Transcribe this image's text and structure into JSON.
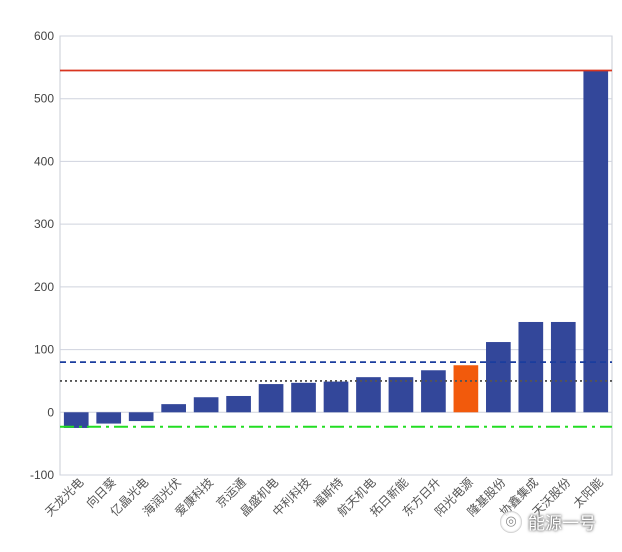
{
  "chart_data": {
    "type": "bar",
    "categories": [
      "天龙光电",
      "向日葵",
      "亿晶光电",
      "海润光伏",
      "爱康科技",
      "京运通",
      "晶盛机电",
      "中利科技",
      "福斯特",
      "航天机电",
      "拓日新能",
      "东方日升",
      "阳光电源",
      "隆基股份",
      "协鑫集成",
      "天沃股份",
      "太阳能"
    ],
    "values": [
      -25,
      -18,
      -14,
      13,
      24,
      26,
      45,
      47,
      49,
      56,
      56,
      67,
      75,
      112,
      144,
      144,
      545
    ],
    "highlight_index": 12,
    "ylim": [
      -100,
      600
    ],
    "yticks": [
      -100,
      0,
      100,
      200,
      300,
      400,
      500,
      600
    ],
    "reference_lines": [
      {
        "value": 545,
        "style": "solid",
        "color": "#d9351f"
      },
      {
        "value": 80,
        "style": "dashed",
        "color": "#1a3d9e"
      },
      {
        "value": 50,
        "style": "dotted",
        "color": "#555555"
      },
      {
        "value": -23,
        "style": "dash-dot",
        "color": "#22dd22"
      }
    ],
    "colors": {
      "bar": "#33479a",
      "highlight": "#f25a0c",
      "grid": "#cfd3de"
    },
    "grid": true,
    "title": "",
    "xlabel": "",
    "ylabel": ""
  },
  "watermark": {
    "text": "能源一号",
    "icon": "wechat-icon"
  }
}
